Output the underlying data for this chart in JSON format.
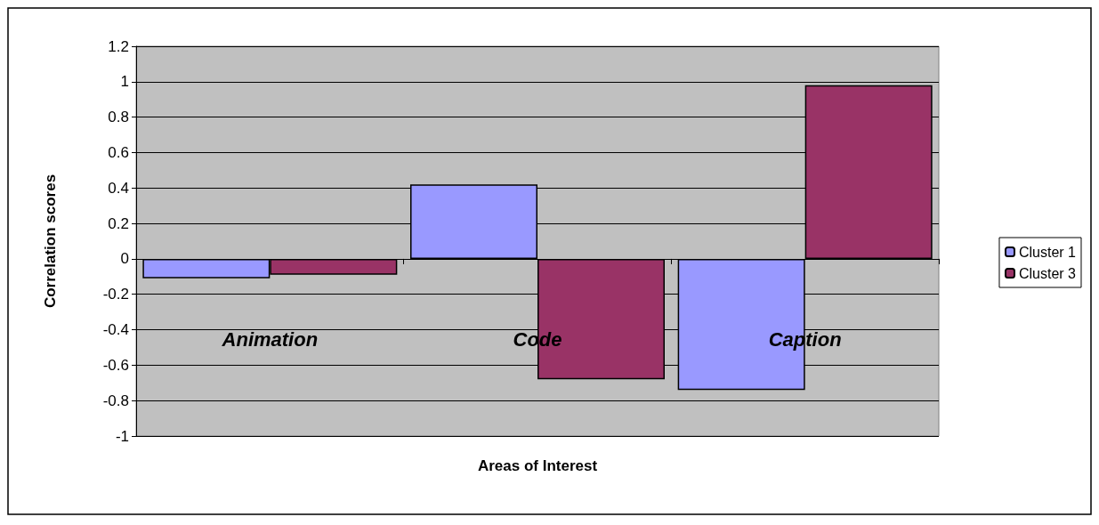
{
  "chart_data": {
    "type": "bar",
    "xlabel": "Areas of Interest",
    "ylabel": "Correlation scores",
    "categories": [
      "Animation",
      "Code",
      "Caption"
    ],
    "series": [
      {
        "name": "Cluster 1",
        "color": "#9999ff",
        "values": [
          -0.11,
          0.42,
          -0.74
        ]
      },
      {
        "name": "Cluster 3",
        "color": "#993366",
        "values": [
          -0.09,
          -0.68,
          0.98
        ]
      }
    ],
    "ylim": [
      -1,
      1.2
    ],
    "yticks": [
      -1,
      -0.8,
      -0.6,
      -0.4,
      -0.2,
      0,
      0.2,
      0.4,
      0.6,
      0.8,
      1,
      1.2
    ],
    "grid": "y",
    "legend": "right"
  }
}
